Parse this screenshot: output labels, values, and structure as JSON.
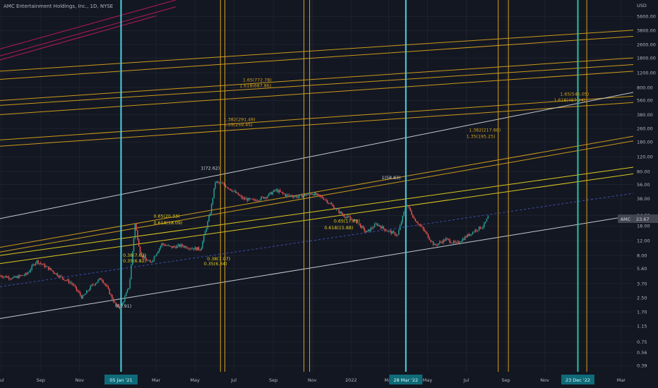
{
  "title": "AMC Entertainment Holdings, Inc., 1D, NYSE",
  "currency": "USD",
  "price_badge": {
    "symbol": "AMC",
    "value": "23.67"
  },
  "colors": {
    "background": "#131722",
    "up": "#26a69a",
    "down": "#ef5350",
    "cyan": "#4dd0e1",
    "gold": "#d6a11a",
    "yellow": "#e8d21e",
    "white": "#d1d4dc",
    "pink": "#c2185b",
    "blue_dashed": "#3f51b5",
    "teal": "#26c6a4",
    "axis_text": "#b2b5be"
  },
  "chart_data": {
    "type": "candlestick",
    "scale": "log",
    "ylim": [
      0.33,
      8800
    ],
    "x_range": [
      "2020-06-29",
      "2023-03-20"
    ],
    "y_ticks": [
      "5600.00",
      "3800.00",
      "2600.00",
      "1800.00",
      "1200.00",
      "800.00",
      "560.00",
      "380.00",
      "260.00",
      "180.00",
      "120.00",
      "80.00",
      "56.00",
      "38.00",
      "24.00",
      "18.00",
      "12.00",
      "8.00",
      "5.60",
      "3.70",
      "2.50",
      "1.70",
      "1.15",
      "0.75",
      "0.56",
      "0.39"
    ],
    "x_ticks": [
      {
        "label": "Jul",
        "date": "2020-07-01"
      },
      {
        "label": "Sep",
        "date": "2020-09-01"
      },
      {
        "label": "Nov",
        "date": "2020-11-01"
      },
      {
        "label": "05 Jan '21",
        "date": "2021-01-05",
        "highlight": true
      },
      {
        "label": "Mar",
        "date": "2021-03-01"
      },
      {
        "label": "May",
        "date": "2021-05-01"
      },
      {
        "label": "Jul",
        "date": "2021-07-01"
      },
      {
        "label": "Sep",
        "date": "2021-09-01"
      },
      {
        "label": "Nov",
        "date": "2021-11-01"
      },
      {
        "label": "2022",
        "date": "2022-01-01"
      },
      {
        "label": "Mar",
        "date": "2022-03-01"
      },
      {
        "label": "28 Mar '22",
        "date": "2022-03-28",
        "highlight": true
      },
      {
        "label": "May",
        "date": "2022-05-01"
      },
      {
        "label": "Jul",
        "date": "2022-07-01"
      },
      {
        "label": "Sep",
        "date": "2022-09-01"
      },
      {
        "label": "Nov",
        "date": "2022-11-01"
      },
      {
        "label": "23 Dec '22",
        "date": "2022-12-23",
        "highlight": true
      },
      {
        "label": "Mar",
        "date": "2023-03-01"
      }
    ],
    "price_path": [
      [
        "2020-06-29",
        4.6
      ],
      [
        "2020-07-20",
        4.3
      ],
      [
        "2020-08-10",
        4.8
      ],
      [
        "2020-08-25",
        6.9
      ],
      [
        "2020-09-15",
        5.5
      ],
      [
        "2020-10-01",
        4.5
      ],
      [
        "2020-10-20",
        3.7
      ],
      [
        "2020-11-05",
        2.5
      ],
      [
        "2020-11-20",
        3.5
      ],
      [
        "2020-12-05",
        4.3
      ],
      [
        "2020-12-15",
        3.2
      ],
      [
        "2020-12-28",
        2.0
      ],
      [
        "2021-01-05",
        1.95
      ],
      [
        "2021-01-18",
        3.5
      ],
      [
        "2021-01-27",
        19.0
      ],
      [
        "2021-02-05",
        8.0
      ],
      [
        "2021-02-20",
        6.5
      ],
      [
        "2021-03-10",
        11.0
      ],
      [
        "2021-03-25",
        10.0
      ],
      [
        "2021-04-10",
        10.5
      ],
      [
        "2021-04-25",
        9.8
      ],
      [
        "2021-05-10",
        9.5
      ],
      [
        "2021-05-25",
        26.0
      ],
      [
        "2021-06-02",
        60.0
      ],
      [
        "2021-06-15",
        56.0
      ],
      [
        "2021-06-28",
        48.0
      ],
      [
        "2021-07-15",
        38.0
      ],
      [
        "2021-08-01",
        36.0
      ],
      [
        "2021-08-20",
        40.0
      ],
      [
        "2021-09-05",
        48.0
      ],
      [
        "2021-09-20",
        42.0
      ],
      [
        "2021-10-10",
        40.0
      ],
      [
        "2021-11-01",
        44.0
      ],
      [
        "2021-11-20",
        38.0
      ],
      [
        "2021-12-05",
        30.0
      ],
      [
        "2021-12-20",
        24.0
      ],
      [
        "2022-01-10",
        20.0
      ],
      [
        "2022-01-25",
        15.0
      ],
      [
        "2022-02-10",
        19.0
      ],
      [
        "2022-02-25",
        16.0
      ],
      [
        "2022-03-15",
        14.0
      ],
      [
        "2022-03-29",
        33.0
      ],
      [
        "2022-04-10",
        22.0
      ],
      [
        "2022-04-25",
        16.0
      ],
      [
        "2022-05-12",
        10.5
      ],
      [
        "2022-05-30",
        12.5
      ],
      [
        "2022-06-15",
        11.0
      ],
      [
        "2022-07-01",
        13.5
      ],
      [
        "2022-07-15",
        16.0
      ],
      [
        "2022-07-28",
        18.0
      ],
      [
        "2022-08-05",
        23.67
      ]
    ],
    "annotations": [
      {
        "text": "0(1.91)",
        "date": "2020-12-27",
        "price": 1.91,
        "color": "white"
      },
      {
        "text": "1(72.62)",
        "date": "2021-05-10",
        "price": 84,
        "color": "white"
      },
      {
        "text": "0.65(20.33)",
        "date": "2021-02-25",
        "price": 22.5,
        "color": "yellow"
      },
      {
        "text": "0.618(18.09)",
        "date": "2021-02-25",
        "price": 18.8,
        "color": "yellow"
      },
      {
        "text": "0.38(7.63)",
        "date": "2021-01-08",
        "price": 7.7,
        "color": "yellow"
      },
      {
        "text": "0.35(6.82)",
        "date": "2021-01-08",
        "price": 6.6,
        "color": "yellow"
      },
      {
        "text": "0.38(7.07)",
        "date": "2021-05-20",
        "price": 7.0,
        "color": "yellow"
      },
      {
        "text": "0.35(6.34)",
        "date": "2021-05-15",
        "price": 6.1,
        "color": "yellow"
      },
      {
        "text": "1.65(772.78)",
        "date": "2021-07-15",
        "price": 940,
        "color": "gold"
      },
      {
        "text": "1.618(687.86)",
        "date": "2021-07-10",
        "price": 810,
        "color": "gold"
      },
      {
        "text": "1.382(291.49)",
        "date": "2021-06-15",
        "price": 318,
        "color": "gold"
      },
      {
        "text": "1.35(259.45)",
        "date": "2021-06-15",
        "price": 275,
        "color": "gold"
      },
      {
        "text": "0.65(17.73)",
        "date": "2021-12-05",
        "price": 19.8,
        "color": "yellow"
      },
      {
        "text": "0.618(15.88)",
        "date": "2021-11-20",
        "price": 16.4,
        "color": "yellow"
      },
      {
        "text": "1(58.83)",
        "date": "2022-02-18",
        "price": 65,
        "color": "white"
      },
      {
        "text": "1.382(217.88)",
        "date": "2022-07-05",
        "price": 240,
        "color": "gold"
      },
      {
        "text": "1.35(195.25)",
        "date": "2022-07-01",
        "price": 200,
        "color": "gold"
      },
      {
        "text": "1.65(545.05)",
        "date": "2022-11-25",
        "price": 640,
        "color": "gold"
      },
      {
        "text": "1.618(487.24)",
        "date": "2022-11-15",
        "price": 545,
        "color": "gold"
      }
    ],
    "channels": [
      {
        "color": "pink",
        "p1": [
          "2020-06-29",
          2300
        ],
        "p2": [
          "2021-04-01",
          8800
        ]
      },
      {
        "color": "pink",
        "p1": [
          "2020-06-29",
          1900
        ],
        "p2": [
          "2021-04-01",
          7300
        ]
      },
      {
        "color": "pink",
        "p1": [
          "2020-06-29",
          1700
        ],
        "p2": [
          "2021-03-01",
          5700
        ]
      },
      {
        "color": "gold",
        "p1": [
          "2020-06-29",
          1250
        ],
        "p2": [
          "2023-03-20",
          3850
        ]
      },
      {
        "color": "gold",
        "p1": [
          "2020-06-29",
          1000
        ],
        "p2": [
          "2023-03-20",
          3250
        ]
      },
      {
        "color": "gold",
        "p1": [
          "2020-06-29",
          560
        ],
        "p2": [
          "2023-03-20",
          1800
        ]
      },
      {
        "color": "gold",
        "p1": [
          "2020-06-29",
          490
        ],
        "p2": [
          "2023-03-20",
          1500
        ]
      },
      {
        "color": "gold",
        "p1": [
          "2020-06-29",
          380
        ],
        "p2": [
          "2023-03-20",
          1250
        ]
      },
      {
        "color": "gold",
        "p1": [
          "2020-06-29",
          190
        ],
        "p2": [
          "2023-03-20",
          630
        ]
      },
      {
        "color": "gold",
        "p1": [
          "2020-06-29",
          160
        ],
        "p2": [
          "2023-03-20",
          530
        ]
      },
      {
        "color": "white",
        "p1": [
          "2020-06-29",
          22
        ],
        "p2": [
          "2023-03-20",
          700
        ]
      },
      {
        "color": "gold",
        "p1": [
          "2020-06-29",
          10
        ],
        "p2": [
          "2023-03-20",
          210
        ]
      },
      {
        "color": "gold",
        "p1": [
          "2020-06-29",
          8.8
        ],
        "p2": [
          "2023-03-20",
          185
        ]
      },
      {
        "color": "yellow",
        "p1": [
          "2020-06-29",
          8.0
        ],
        "p2": [
          "2023-03-20",
          90
        ]
      },
      {
        "color": "yellow",
        "p1": [
          "2020-06-29",
          6.4
        ],
        "p2": [
          "2023-03-20",
          75
        ]
      },
      {
        "color": "blue_dashed",
        "p1": [
          "2020-06-29",
          3.4
        ],
        "p2": [
          "2023-03-20",
          44
        ]
      },
      {
        "color": "white",
        "p1": [
          "2020-06-29",
          1.42
        ],
        "p2": [
          "2023-03-20",
          24
        ]
      }
    ],
    "vlines": [
      {
        "date": "2021-01-05",
        "color": "cyan"
      },
      {
        "date": "2021-06-10",
        "color": "gold"
      },
      {
        "date": "2021-06-17",
        "color": "gold"
      },
      {
        "date": "2021-10-19",
        "color": "gold"
      },
      {
        "date": "2021-10-28",
        "color": "gold"
      },
      {
        "date": "2022-03-28",
        "color": "cyan"
      },
      {
        "date": "2022-08-20",
        "color": "gold"
      },
      {
        "date": "2022-09-05",
        "color": "gold"
      },
      {
        "date": "2022-12-23",
        "color": "teal"
      },
      {
        "date": "2023-01-06",
        "color": "gold"
      }
    ]
  }
}
